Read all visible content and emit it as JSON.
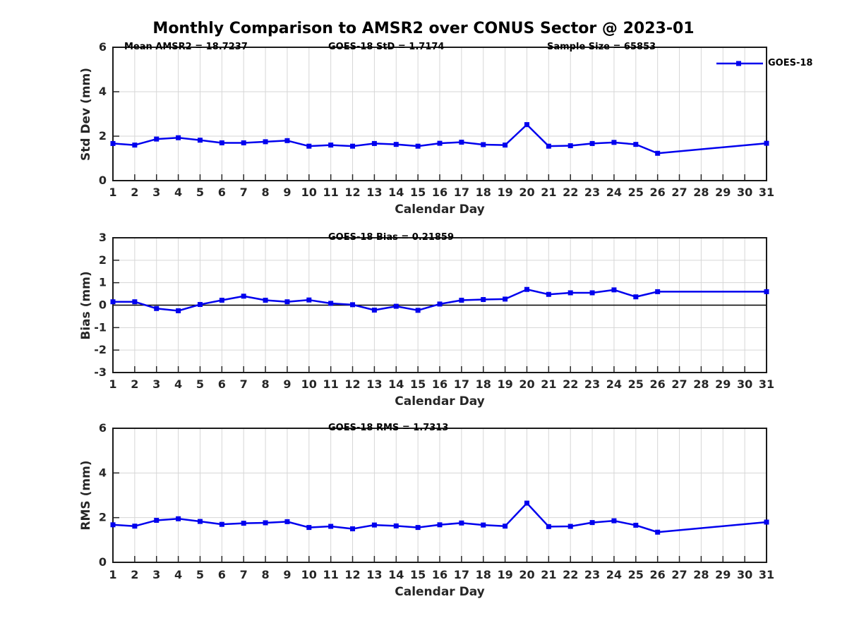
{
  "page_title": "Monthly Comparison to AMSR2 over CONUS Sector @ 2023-01",
  "legend": {
    "label": "GOES-18"
  },
  "colors": {
    "series": "#0000ee",
    "tick_text": "#262626",
    "grid": "#d6d6d6",
    "axis": "#1a1a1a",
    "zero_line": "#000000"
  },
  "chart_data": [
    {
      "type": "line",
      "ylabel": "Std Dev (mm)",
      "xlabel": "Calendar Day",
      "xlim": [
        1,
        31
      ],
      "ylim": [
        0,
        6
      ],
      "yticks": [
        0,
        2,
        4,
        6
      ],
      "xticks": [
        1,
        2,
        3,
        4,
        5,
        6,
        7,
        8,
        9,
        10,
        11,
        12,
        13,
        14,
        15,
        16,
        17,
        18,
        19,
        20,
        21,
        22,
        23,
        24,
        25,
        26,
        27,
        28,
        29,
        30,
        31
      ],
      "grid": true,
      "zero_line": false,
      "legend_position": "top-right",
      "annotations": [
        "Mean AMSR2 = 18.7237",
        "GOES-18 StD = 1.7174",
        "Sample Size = 65853"
      ],
      "series": [
        {
          "name": "GOES-18",
          "color": "#0000ee",
          "marker": "square",
          "x": [
            1,
            2,
            3,
            4,
            5,
            6,
            7,
            8,
            9,
            10,
            11,
            12,
            13,
            14,
            15,
            16,
            17,
            18,
            19,
            20,
            21,
            22,
            23,
            24,
            25,
            26,
            31
          ],
          "y": [
            1.67,
            1.6,
            1.87,
            1.93,
            1.82,
            1.7,
            1.7,
            1.75,
            1.8,
            1.55,
            1.6,
            1.55,
            1.67,
            1.63,
            1.55,
            1.68,
            1.73,
            1.62,
            1.6,
            2.52,
            1.55,
            1.57,
            1.67,
            1.72,
            1.63,
            1.23,
            1.68
          ]
        }
      ]
    },
    {
      "type": "line",
      "ylabel": "Bias (mm)",
      "xlabel": "Calendar Day",
      "xlim": [
        1,
        31
      ],
      "ylim": [
        -3,
        3
      ],
      "yticks": [
        -3,
        -2,
        -1,
        0,
        1,
        2,
        3
      ],
      "xticks": [
        1,
        2,
        3,
        4,
        5,
        6,
        7,
        8,
        9,
        10,
        11,
        12,
        13,
        14,
        15,
        16,
        17,
        18,
        19,
        20,
        21,
        22,
        23,
        24,
        25,
        26,
        27,
        28,
        29,
        30,
        31
      ],
      "grid": true,
      "zero_line": true,
      "annotations": [
        "GOES-18 Bias = 0.21859"
      ],
      "series": [
        {
          "name": "GOES-18",
          "color": "#0000ee",
          "marker": "square",
          "x": [
            1,
            2,
            3,
            4,
            5,
            6,
            7,
            8,
            9,
            10,
            11,
            12,
            13,
            14,
            15,
            16,
            17,
            18,
            19,
            20,
            21,
            22,
            23,
            24,
            25,
            26,
            31
          ],
          "y": [
            0.15,
            0.15,
            -0.15,
            -0.25,
            0.03,
            0.22,
            0.4,
            0.22,
            0.15,
            0.23,
            0.08,
            0.02,
            -0.22,
            -0.05,
            -0.23,
            0.05,
            0.22,
            0.25,
            0.27,
            0.7,
            0.48,
            0.55,
            0.55,
            0.68,
            0.37,
            0.6,
            0.6
          ]
        }
      ]
    },
    {
      "type": "line",
      "ylabel": "RMS (mm)",
      "xlabel": "Calendar Day",
      "xlim": [
        1,
        31
      ],
      "ylim": [
        0,
        6
      ],
      "yticks": [
        0,
        2,
        4,
        6
      ],
      "xticks": [
        1,
        2,
        3,
        4,
        5,
        6,
        7,
        8,
        9,
        10,
        11,
        12,
        13,
        14,
        15,
        16,
        17,
        18,
        19,
        20,
        21,
        22,
        23,
        24,
        25,
        26,
        27,
        28,
        29,
        30,
        31
      ],
      "grid": true,
      "zero_line": false,
      "annotations": [
        "GOES-18 RMS = 1.7313"
      ],
      "series": [
        {
          "name": "GOES-18",
          "color": "#0000ee",
          "marker": "square",
          "x": [
            1,
            2,
            3,
            4,
            5,
            6,
            7,
            8,
            9,
            10,
            11,
            12,
            13,
            14,
            15,
            16,
            17,
            18,
            19,
            20,
            21,
            22,
            23,
            24,
            25,
            26,
            31
          ],
          "y": [
            1.68,
            1.62,
            1.88,
            1.95,
            1.83,
            1.7,
            1.75,
            1.77,
            1.82,
            1.56,
            1.61,
            1.5,
            1.67,
            1.63,
            1.56,
            1.68,
            1.76,
            1.67,
            1.62,
            2.65,
            1.6,
            1.61,
            1.78,
            1.86,
            1.66,
            1.35,
            1.8
          ]
        }
      ]
    }
  ]
}
